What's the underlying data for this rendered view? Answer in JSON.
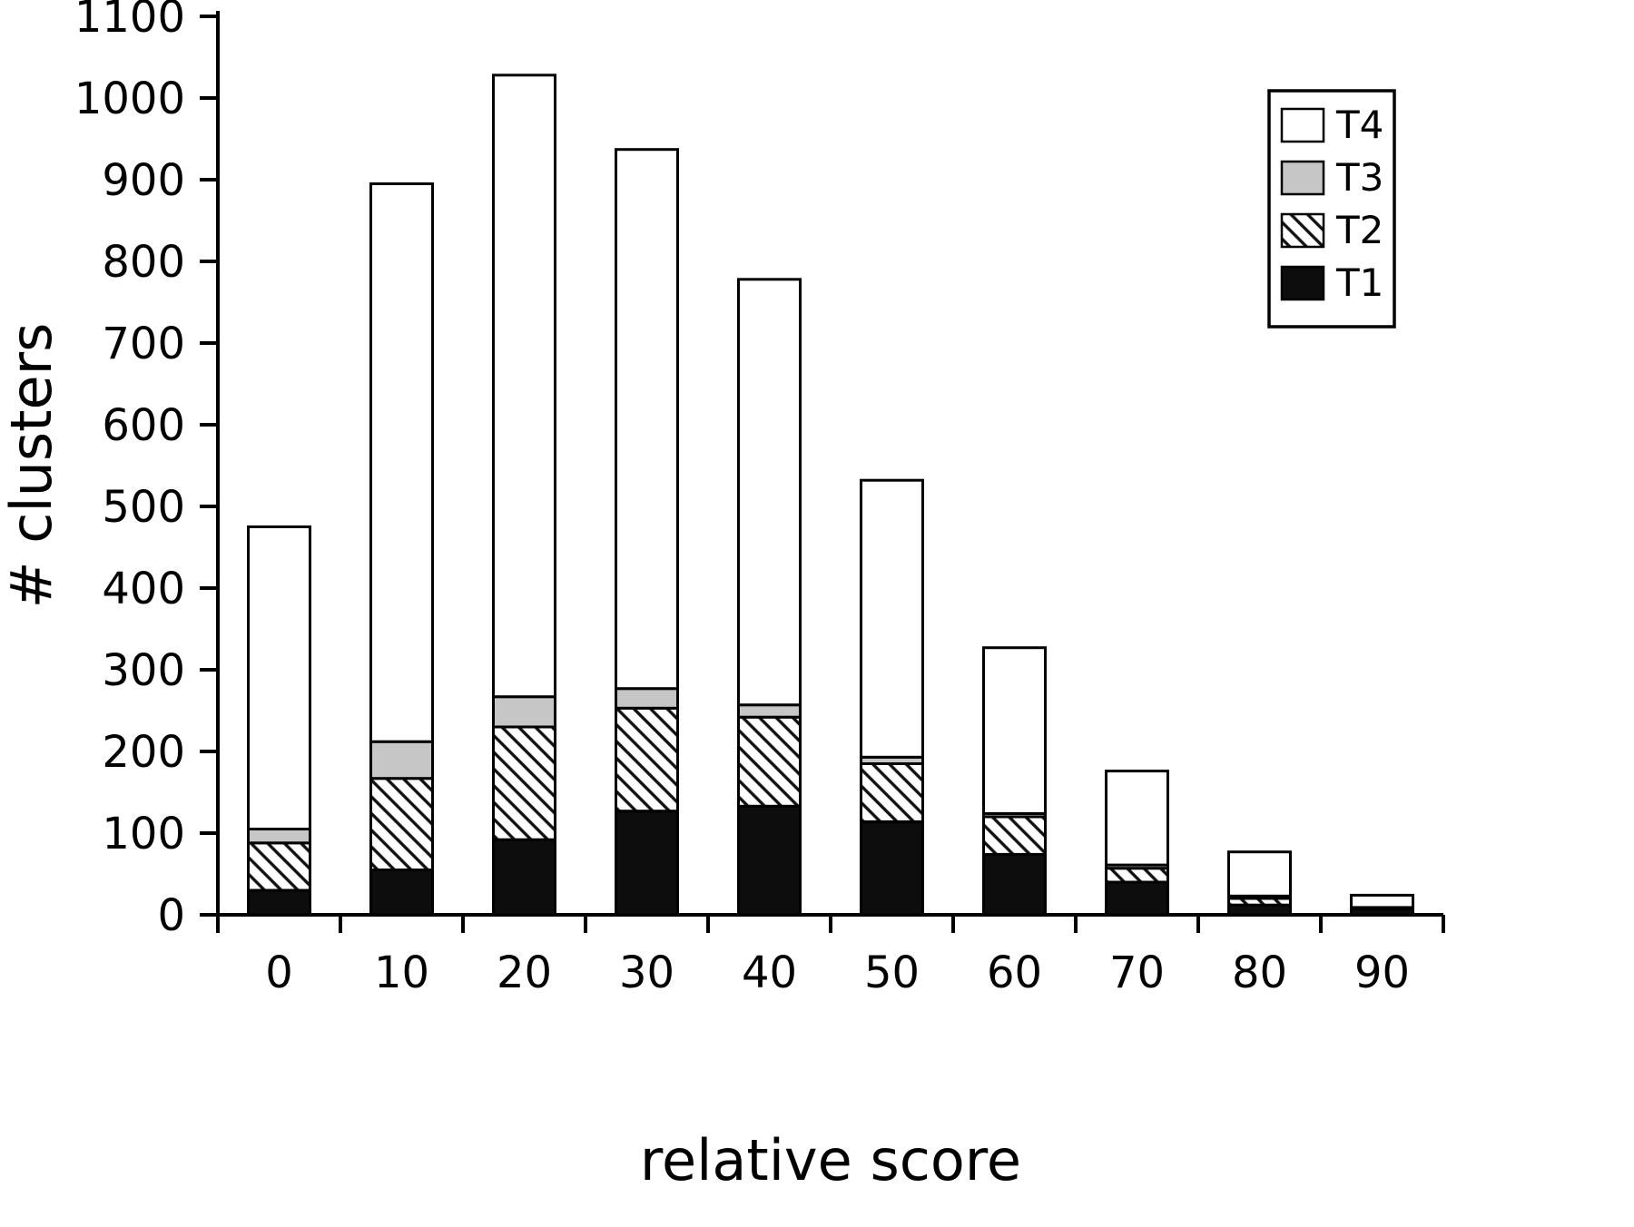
{
  "chart_data": {
    "type": "bar",
    "stacked": true,
    "title": "",
    "xlabel": "relative score",
    "ylabel": "# clusters",
    "categories": [
      "0",
      "10",
      "20",
      "30",
      "40",
      "50",
      "60",
      "70",
      "80",
      "90"
    ],
    "series": [
      {
        "name": "T1",
        "style": "solid",
        "color": "#0d0d0d",
        "values": [
          30,
          55,
          92,
          127,
          133,
          114,
          74,
          40,
          12,
          7
        ]
      },
      {
        "name": "T2",
        "style": "hatched",
        "color": "#ffffff",
        "values": [
          58,
          112,
          138,
          126,
          109,
          71,
          46,
          17,
          8,
          2
        ]
      },
      {
        "name": "T3",
        "style": "solid",
        "color": "#c6c6c6",
        "values": [
          17,
          45,
          37,
          24,
          15,
          8,
          4,
          4,
          3,
          0
        ]
      },
      {
        "name": "T4",
        "style": "solid",
        "color": "#ffffff",
        "values": [
          370,
          683,
          761,
          660,
          521,
          339,
          203,
          115,
          54,
          15
        ]
      }
    ],
    "totals": [
      475,
      895,
      1028,
      937,
      778,
      532,
      327,
      176,
      77,
      24
    ],
    "ylim": [
      0,
      1100
    ],
    "yticks": [
      0,
      100,
      200,
      300,
      400,
      500,
      600,
      700,
      800,
      900,
      1000,
      1100
    ],
    "grid": false,
    "legend_position": "top-right",
    "legend_order": [
      "T4",
      "T3",
      "T2",
      "T1"
    ]
  }
}
